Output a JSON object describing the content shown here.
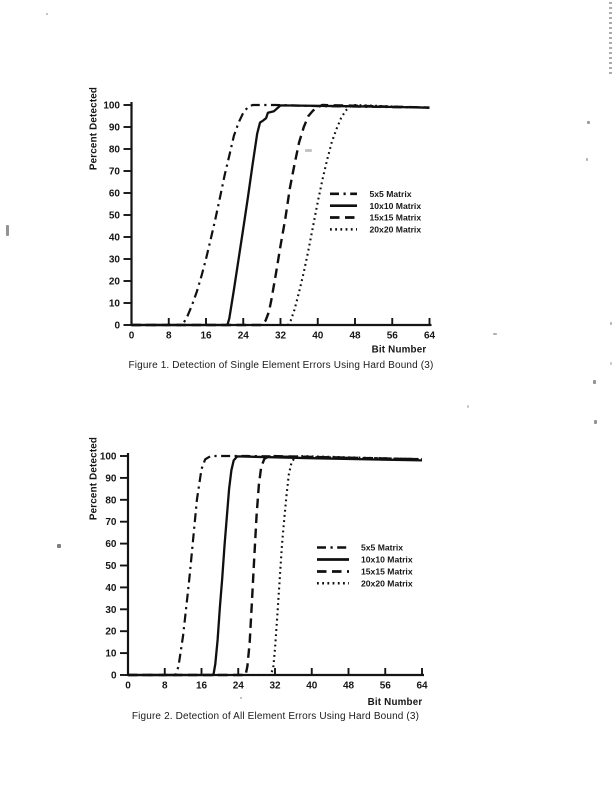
{
  "page": {
    "background_color": "#ffffff",
    "ink_color": "#161616"
  },
  "chart_data": [
    {
      "type": "line",
      "caption": "Figure 1. Detection of Single Element Errors Using Hard Bound (3)",
      "xlabel": "Bit Number",
      "ylabel": "Percent Detected",
      "xlim": [
        0,
        64
      ],
      "ylim": [
        0,
        100
      ],
      "xticks": [
        0,
        8,
        16,
        24,
        32,
        40,
        48,
        56,
        64
      ],
      "yticks": [
        0,
        10,
        20,
        30,
        40,
        50,
        60,
        70,
        80,
        90,
        100
      ],
      "grid": false,
      "legend_position": "right-center",
      "legend": [
        "5x5 Matrix",
        "10x10 Matrix",
        "15x15 Matrix",
        "20x20 Matrix"
      ],
      "series": [
        {
          "name": "5x5 Matrix",
          "line_style": "dashdot",
          "points": [
            [
              0,
              0
            ],
            [
              10.8,
              0
            ],
            [
              11.5,
              2
            ],
            [
              12,
              4
            ],
            [
              13,
              9
            ],
            [
              14,
              15
            ],
            [
              15,
              22
            ],
            [
              16,
              30
            ],
            [
              17,
              39
            ],
            [
              18,
              48
            ],
            [
              19,
              58
            ],
            [
              20,
              68
            ],
            [
              21,
              77
            ],
            [
              22,
              86
            ],
            [
              23,
              92
            ],
            [
              24,
              96.5
            ],
            [
              25,
              99
            ],
            [
              26,
              100
            ],
            [
              31,
              100
            ],
            [
              40,
              99.5
            ],
            [
              64,
              98.8
            ]
          ]
        },
        {
          "name": "10x10 Matrix",
          "line_style": "solid",
          "points": [
            [
              0,
              0
            ],
            [
              20.6,
              0
            ],
            [
              21,
              3
            ],
            [
              22,
              16
            ],
            [
              23,
              30
            ],
            [
              24,
              44
            ],
            [
              25,
              58
            ],
            [
              26,
              73
            ],
            [
              27,
              87
            ],
            [
              27.6,
              92
            ],
            [
              28.3,
              93
            ],
            [
              28.9,
              94
            ],
            [
              29.3,
              96.5
            ],
            [
              30.6,
              97.2
            ],
            [
              32,
              99.8
            ],
            [
              48,
              99.4
            ],
            [
              64,
              98.8
            ]
          ]
        },
        {
          "name": "15x15 Matrix",
          "line_style": "dashed",
          "points": [
            [
              0,
              0
            ],
            [
              28,
              0
            ],
            [
              28.8,
              2
            ],
            [
              29.5,
              6
            ],
            [
              30,
              11
            ],
            [
              31,
              23
            ],
            [
              32,
              36
            ],
            [
              33,
              48
            ],
            [
              34,
              62
            ],
            [
              35,
              73
            ],
            [
              36,
              83
            ],
            [
              37,
              90
            ],
            [
              38,
              95
            ],
            [
              39,
              97.5
            ],
            [
              40,
              99
            ],
            [
              41,
              100
            ],
            [
              64,
              98.8
            ]
          ]
        },
        {
          "name": "20x20 Matrix",
          "line_style": "dotted",
          "points": [
            [
              0,
              0
            ],
            [
              33.6,
              0
            ],
            [
              34.2,
              2
            ],
            [
              35,
              7
            ],
            [
              36,
              15
            ],
            [
              37,
              24
            ],
            [
              38,
              34
            ],
            [
              39,
              45
            ],
            [
              40,
              56
            ],
            [
              41,
              66
            ],
            [
              42,
              75
            ],
            [
              43,
              83
            ],
            [
              44,
              89
            ],
            [
              45,
              94
            ],
            [
              46,
              97.5
            ],
            [
              47,
              99.3
            ],
            [
              48,
              100
            ],
            [
              64,
              98.7
            ]
          ]
        }
      ]
    },
    {
      "type": "line",
      "caption": "Figure 2. Detection of All Element Errors Using Hard Bound (3)",
      "xlabel": "Bit Number",
      "ylabel": "Percent Detected",
      "xlim": [
        0,
        64
      ],
      "ylim": [
        0,
        100
      ],
      "xticks": [
        0,
        8,
        16,
        24,
        32,
        40,
        48,
        56,
        64
      ],
      "yticks": [
        0,
        10,
        20,
        30,
        40,
        50,
        60,
        70,
        80,
        90,
        100
      ],
      "grid": false,
      "legend_position": "right-center",
      "legend": [
        "5x5 Matrix",
        "10x10 Matrix",
        "15x15 Matrix",
        "20x20 Matrix"
      ],
      "series": [
        {
          "name": "5x5 Matrix",
          "line_style": "dashdot",
          "points": [
            [
              0,
              0
            ],
            [
              10.4,
              0
            ],
            [
              11,
              4
            ],
            [
              12,
              18
            ],
            [
              13,
              37
            ],
            [
              13.5,
              47
            ],
            [
              14,
              58
            ],
            [
              15,
              80
            ],
            [
              16,
              94
            ],
            [
              16.8,
              98.5
            ],
            [
              18,
              100
            ],
            [
              26,
              100
            ],
            [
              64,
              98.6
            ]
          ]
        },
        {
          "name": "10x10 Matrix",
          "line_style": "solid",
          "points": [
            [
              0,
              0
            ],
            [
              18.6,
              0
            ],
            [
              19,
              5
            ],
            [
              19.5,
              16
            ],
            [
              20,
              31
            ],
            [
              20.5,
              44
            ],
            [
              21,
              59
            ],
            [
              21.5,
              72
            ],
            [
              22,
              85
            ],
            [
              22.5,
              93.5
            ],
            [
              23,
              98
            ],
            [
              23.8,
              99.8
            ],
            [
              40,
              99
            ],
            [
              64,
              98
            ]
          ]
        },
        {
          "name": "15x15 Matrix",
          "line_style": "dashed",
          "points": [
            [
              0,
              0
            ],
            [
              25.6,
              0
            ],
            [
              26,
              4
            ],
            [
              26.5,
              15
            ],
            [
              27,
              34
            ],
            [
              27.5,
              54
            ],
            [
              28,
              73
            ],
            [
              28.5,
              87
            ],
            [
              29,
              95
            ],
            [
              29.7,
              98.7
            ],
            [
              30.8,
              100
            ],
            [
              64,
              98.5
            ]
          ]
        },
        {
          "name": "20x20 Matrix",
          "line_style": "dotted",
          "points": [
            [
              0,
              0
            ],
            [
              31,
              0
            ],
            [
              31.6,
              3
            ],
            [
              32,
              12
            ],
            [
              32.5,
              27
            ],
            [
              33,
              43
            ],
            [
              33.5,
              59
            ],
            [
              34,
              71
            ],
            [
              34.5,
              82
            ],
            [
              35,
              91.5
            ],
            [
              35.6,
              97
            ],
            [
              36.2,
              99
            ],
            [
              37,
              100
            ],
            [
              64,
              98.5
            ]
          ]
        }
      ]
    }
  ]
}
